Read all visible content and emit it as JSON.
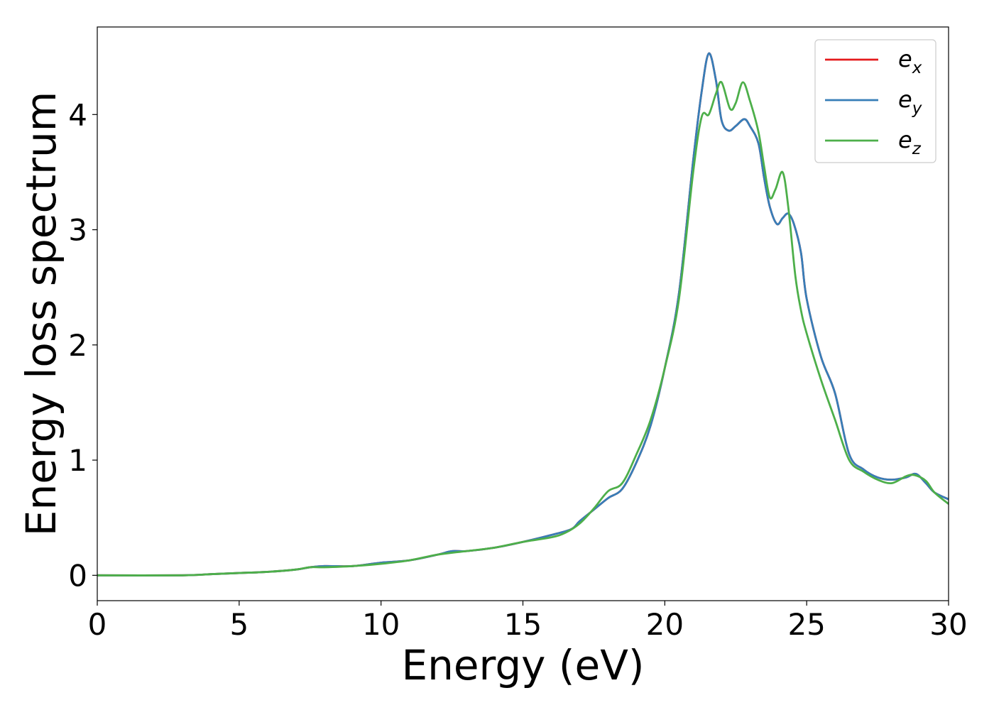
{
  "chart_data": {
    "type": "line",
    "title": "",
    "xlabel": "Energy (eV)",
    "ylabel": "Energy loss spectrum",
    "xlim": [
      0,
      30
    ],
    "ylim": [
      -0.22,
      4.76
    ],
    "xticks": [
      0,
      5,
      10,
      15,
      20,
      25,
      30
    ],
    "xtick_labels": [
      "0",
      "5",
      "10",
      "15",
      "20",
      "25",
      "30"
    ],
    "yticks": [
      0,
      1,
      2,
      3,
      4
    ],
    "ytick_labels": [
      "0",
      "1",
      "2",
      "3",
      "4"
    ],
    "grid": false,
    "legend_position": "top-right",
    "series": [
      {
        "name": "e",
        "subscript": "x",
        "color": "#e41a1c",
        "x": [
          0,
          3,
          4,
          5,
          6,
          7,
          7.5,
          8,
          9,
          10,
          11,
          12,
          12.5,
          13,
          14,
          15,
          16,
          16.7,
          17,
          17.5,
          18,
          18.5,
          19,
          19.5,
          20,
          20.5,
          21,
          21.3,
          21.55,
          21.8,
          22,
          22.25,
          22.5,
          22.8,
          23,
          23.3,
          23.5,
          23.7,
          23.95,
          24.15,
          24.35,
          24.55,
          24.8,
          25,
          25.5,
          26,
          26.5,
          27,
          27.5,
          28,
          28.5,
          28.85,
          29.2,
          29.5,
          30
        ],
        "y": [
          0,
          0,
          0.01,
          0.02,
          0.03,
          0.05,
          0.07,
          0.08,
          0.08,
          0.11,
          0.13,
          0.18,
          0.21,
          0.21,
          0.24,
          0.29,
          0.35,
          0.4,
          0.47,
          0.57,
          0.67,
          0.75,
          0.98,
          1.3,
          1.8,
          2.45,
          3.6,
          4.2,
          4.53,
          4.3,
          3.95,
          3.86,
          3.9,
          3.96,
          3.9,
          3.75,
          3.45,
          3.2,
          3.05,
          3.1,
          3.14,
          3.05,
          2.8,
          2.4,
          1.9,
          1.58,
          1.05,
          0.92,
          0.85,
          0.83,
          0.85,
          0.88,
          0.8,
          0.72,
          0.66
        ]
      },
      {
        "name": "e",
        "subscript": "y",
        "color": "#377eb8",
        "x": [
          0,
          3,
          4,
          5,
          6,
          7,
          7.5,
          8,
          9,
          10,
          11,
          12,
          12.5,
          13,
          14,
          15,
          16,
          16.7,
          17,
          17.5,
          18,
          18.5,
          19,
          19.5,
          20,
          20.5,
          21,
          21.3,
          21.55,
          21.8,
          22,
          22.25,
          22.5,
          22.8,
          23,
          23.3,
          23.5,
          23.7,
          23.95,
          24.15,
          24.35,
          24.55,
          24.8,
          25,
          25.5,
          26,
          26.5,
          27,
          27.5,
          28,
          28.5,
          28.85,
          29.2,
          29.5,
          30
        ],
        "y": [
          0,
          0,
          0.01,
          0.02,
          0.03,
          0.05,
          0.07,
          0.08,
          0.08,
          0.11,
          0.13,
          0.18,
          0.21,
          0.21,
          0.24,
          0.29,
          0.35,
          0.4,
          0.47,
          0.57,
          0.67,
          0.75,
          0.98,
          1.3,
          1.8,
          2.45,
          3.6,
          4.2,
          4.53,
          4.3,
          3.95,
          3.86,
          3.9,
          3.96,
          3.9,
          3.75,
          3.45,
          3.2,
          3.05,
          3.1,
          3.14,
          3.05,
          2.8,
          2.4,
          1.9,
          1.58,
          1.05,
          0.92,
          0.85,
          0.83,
          0.85,
          0.88,
          0.8,
          0.72,
          0.66
        ]
      },
      {
        "name": "e",
        "subscript": "z",
        "color": "#4daf4a",
        "x": [
          0,
          3,
          4,
          5,
          6,
          7,
          7.5,
          8,
          9,
          10,
          11,
          12,
          13,
          14,
          15,
          16,
          16.5,
          17,
          17.5,
          18,
          18.5,
          19,
          19.5,
          20,
          20.5,
          21,
          21.3,
          21.55,
          21.8,
          22,
          22.3,
          22.5,
          22.75,
          23,
          23.3,
          23.5,
          23.7,
          23.9,
          24.15,
          24.35,
          24.6,
          24.8,
          25,
          25.5,
          26,
          26.5,
          27,
          27.5,
          28,
          28.5,
          28.8,
          29.2,
          29.5,
          30
        ],
        "y": [
          0,
          0,
          0.01,
          0.02,
          0.03,
          0.05,
          0.07,
          0.07,
          0.08,
          0.1,
          0.13,
          0.18,
          0.21,
          0.24,
          0.29,
          0.33,
          0.37,
          0.45,
          0.58,
          0.73,
          0.8,
          1.05,
          1.35,
          1.8,
          2.4,
          3.5,
          3.98,
          4.0,
          4.18,
          4.28,
          4.05,
          4.1,
          4.28,
          4.12,
          3.85,
          3.55,
          3.28,
          3.35,
          3.5,
          3.2,
          2.6,
          2.3,
          2.1,
          1.7,
          1.35,
          1.0,
          0.9,
          0.83,
          0.8,
          0.86,
          0.87,
          0.82,
          0.72,
          0.62
        ]
      }
    ]
  }
}
